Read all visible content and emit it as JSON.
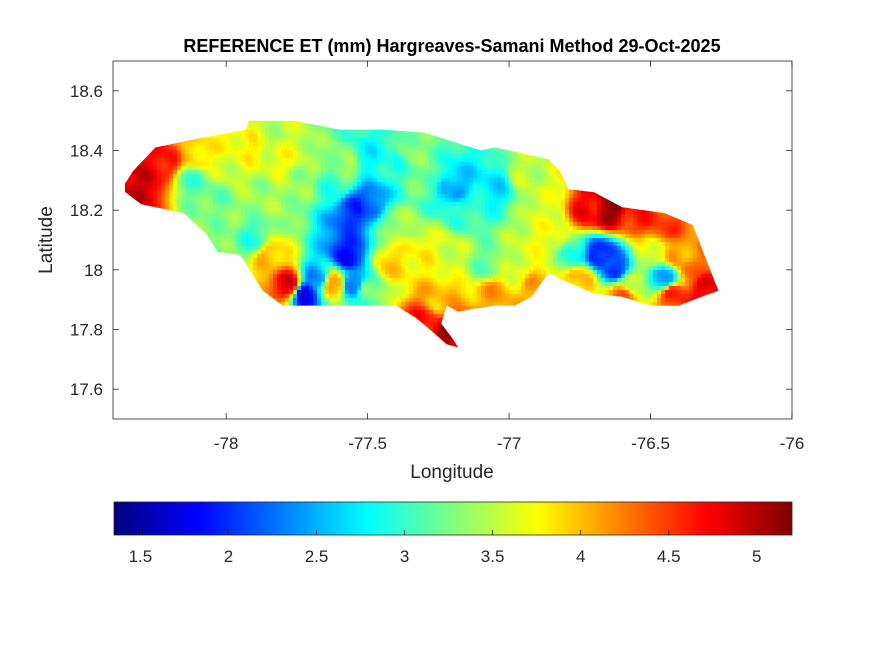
{
  "chart_data": {
    "type": "heatmap",
    "title": "REFERENCE ET (mm) Hargreaves-Samani Method  29-Oct-2025",
    "xlabel": "Longitude",
    "ylabel": "Latitude",
    "xlim": [
      -78.4,
      -76
    ],
    "ylim": [
      17.5,
      18.7
    ],
    "x_ticks": [
      -78,
      -77.5,
      -77,
      -76.5,
      -76
    ],
    "x_tick_labels": [
      "-78",
      "-77.5",
      "-77",
      "-76.5",
      "-76"
    ],
    "y_ticks": [
      17.6,
      17.8,
      18,
      18.2,
      18.4,
      18.6
    ],
    "y_tick_labels": [
      "17.6",
      "17.8",
      "18",
      "18.2",
      "18.4",
      "18.6"
    ],
    "grid": false,
    "colormap": "jet",
    "colorbar": {
      "location": "bottom",
      "limits": [
        1.35,
        5.2
      ],
      "ticks": [
        1.5,
        2,
        2.5,
        3,
        3.5,
        4,
        4.5,
        5
      ],
      "tick_labels": [
        "1.5",
        "2",
        "2.5",
        "3",
        "3.5",
        "4",
        "4.5",
        "5"
      ]
    },
    "outline": [
      [
        -78.37,
        18.27
      ],
      [
        -78.33,
        18.33
      ],
      [
        -78.25,
        18.41
      ],
      [
        -78.1,
        18.44
      ],
      [
        -77.93,
        18.47
      ],
      [
        -77.92,
        18.5
      ],
      [
        -77.76,
        18.5
      ],
      [
        -77.6,
        18.47
      ],
      [
        -77.45,
        18.47
      ],
      [
        -77.3,
        18.46
      ],
      [
        -77.2,
        18.43
      ],
      [
        -77.1,
        18.4
      ],
      [
        -77.05,
        18.41
      ],
      [
        -76.95,
        18.39
      ],
      [
        -76.86,
        18.37
      ],
      [
        -76.82,
        18.33
      ],
      [
        -76.79,
        18.27
      ],
      [
        -76.7,
        18.26
      ],
      [
        -76.6,
        18.21
      ],
      [
        -76.45,
        18.19
      ],
      [
        -76.35,
        18.15
      ],
      [
        -76.31,
        18.05
      ],
      [
        -76.26,
        17.93
      ],
      [
        -76.32,
        17.91
      ],
      [
        -76.4,
        17.88
      ],
      [
        -76.5,
        17.88
      ],
      [
        -76.6,
        17.91
      ],
      [
        -76.7,
        17.92
      ],
      [
        -76.82,
        17.97
      ],
      [
        -76.86,
        17.99
      ],
      [
        -76.92,
        17.91
      ],
      [
        -76.98,
        17.88
      ],
      [
        -77.05,
        17.88
      ],
      [
        -77.12,
        17.87
      ],
      [
        -77.18,
        17.86
      ],
      [
        -77.22,
        17.88
      ],
      [
        -77.24,
        17.82
      ],
      [
        -77.2,
        17.77
      ],
      [
        -77.18,
        17.74
      ],
      [
        -77.22,
        17.75
      ],
      [
        -77.28,
        17.8
      ],
      [
        -77.33,
        17.84
      ],
      [
        -77.4,
        17.88
      ],
      [
        -77.55,
        17.88
      ],
      [
        -77.7,
        17.88
      ],
      [
        -77.8,
        17.88
      ],
      [
        -77.87,
        17.93
      ],
      [
        -77.95,
        18.05
      ],
      [
        -78.03,
        18.06
      ],
      [
        -78.07,
        18.12
      ],
      [
        -78.15,
        18.19
      ],
      [
        -78.3,
        18.22
      ],
      [
        -78.37,
        18.27
      ]
    ],
    "field_anchors": [
      [
        -78.3,
        18.28,
        4.9
      ],
      [
        -78.22,
        18.36,
        4.7
      ],
      [
        -78.1,
        18.38,
        3.9
      ],
      [
        -78.12,
        18.3,
        3.1
      ],
      [
        -78.05,
        18.25,
        3.2
      ],
      [
        -78.02,
        18.15,
        3.3
      ],
      [
        -78.0,
        18.34,
        3.6
      ],
      [
        -77.92,
        18.42,
        3.8
      ],
      [
        -77.85,
        18.45,
        3.5
      ],
      [
        -77.8,
        18.36,
        3.7
      ],
      [
        -77.75,
        18.3,
        3.4
      ],
      [
        -77.88,
        18.25,
        3.4
      ],
      [
        -77.9,
        18.1,
        3.0
      ],
      [
        -77.85,
        18.05,
        4.0
      ],
      [
        -77.78,
        17.95,
        4.8
      ],
      [
        -77.72,
        17.92,
        1.8
      ],
      [
        -77.68,
        17.97,
        2.4
      ],
      [
        -77.62,
        17.95,
        4.2
      ],
      [
        -77.57,
        18.05,
        1.9
      ],
      [
        -77.55,
        17.95,
        2.2
      ],
      [
        -77.5,
        17.93,
        3.3
      ],
      [
        -77.55,
        18.2,
        2.0
      ],
      [
        -77.5,
        18.22,
        2.2
      ],
      [
        -77.62,
        18.28,
        3.0
      ],
      [
        -77.58,
        18.35,
        3.4
      ],
      [
        -77.5,
        18.38,
        2.8
      ],
      [
        -77.42,
        18.38,
        2.9
      ],
      [
        -77.35,
        18.4,
        3.3
      ],
      [
        -77.3,
        18.3,
        3.2
      ],
      [
        -77.2,
        18.27,
        2.5
      ],
      [
        -77.15,
        18.2,
        3.0
      ],
      [
        -77.05,
        18.28,
        2.7
      ],
      [
        -76.95,
        18.32,
        3.5
      ],
      [
        -76.88,
        18.22,
        3.6
      ],
      [
        -77.4,
        18.15,
        3.4
      ],
      [
        -77.32,
        18.05,
        3.8
      ],
      [
        -77.42,
        18.02,
        3.9
      ],
      [
        -77.22,
        18.05,
        3.6
      ],
      [
        -77.08,
        18.02,
        3.2
      ],
      [
        -76.97,
        18.0,
        3.6
      ],
      [
        -77.05,
        17.92,
        4.1
      ],
      [
        -77.25,
        17.9,
        4.0
      ],
      [
        -77.22,
        17.78,
        5.0
      ],
      [
        -77.3,
        17.83,
        4.6
      ],
      [
        -76.9,
        17.95,
        4.1
      ],
      [
        -76.85,
        18.1,
        3.7
      ],
      [
        -76.78,
        18.05,
        2.9
      ],
      [
        -76.72,
        18.2,
        4.7
      ],
      [
        -76.65,
        18.2,
        5.1
      ],
      [
        -76.55,
        18.18,
        4.6
      ],
      [
        -76.45,
        18.15,
        4.5
      ],
      [
        -76.68,
        18.05,
        1.9
      ],
      [
        -76.62,
        18.0,
        2.1
      ],
      [
        -76.58,
        17.95,
        3.5
      ],
      [
        -76.5,
        18.05,
        3.6
      ],
      [
        -76.45,
        17.97,
        2.4
      ],
      [
        -76.4,
        18.05,
        4.1
      ],
      [
        -76.35,
        18.0,
        4.3
      ],
      [
        -76.3,
        17.94,
        4.8
      ],
      [
        -76.42,
        17.92,
        4.6
      ],
      [
        -76.6,
        17.92,
        4.3
      ],
      [
        -76.75,
        17.97,
        4.0
      ]
    ]
  }
}
